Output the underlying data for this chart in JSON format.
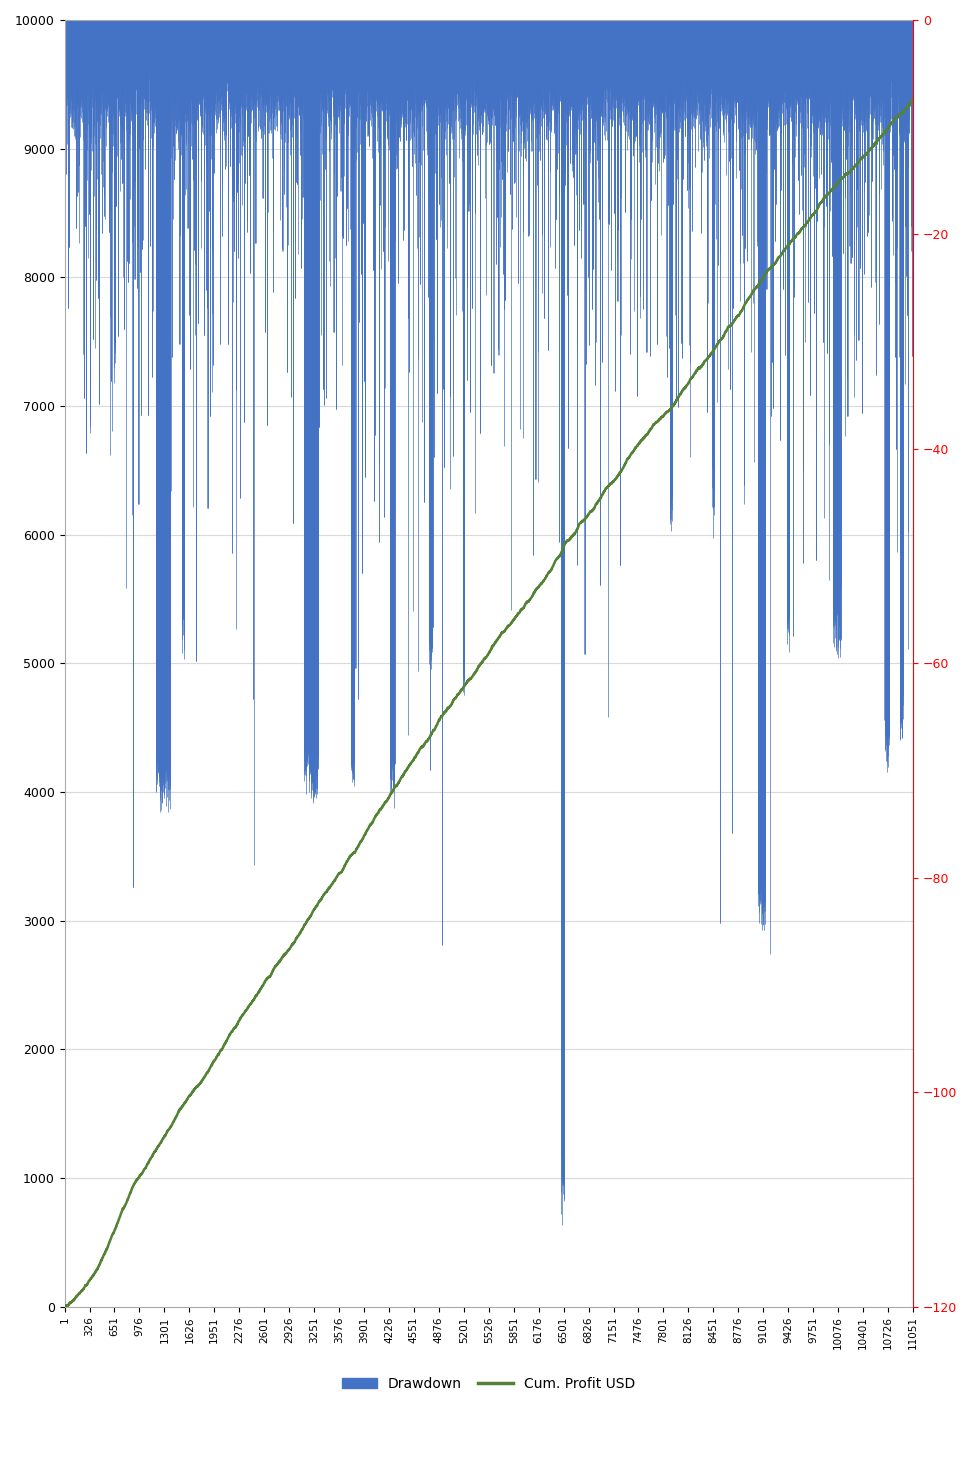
{
  "title": "",
  "left_ylim": [
    0,
    10000
  ],
  "right_ylim": [
    -120,
    0
  ],
  "left_yticks": [
    0,
    1000,
    2000,
    3000,
    4000,
    5000,
    6000,
    7000,
    8000,
    9000,
    10000
  ],
  "right_yticks": [
    0,
    -20,
    -40,
    -60,
    -80,
    -100,
    -120
  ],
  "xtick_positions": [
    1,
    326,
    651,
    976,
    1301,
    1626,
    1951,
    2276,
    2601,
    2926,
    3251,
    3576,
    3901,
    4226,
    4551,
    4876,
    5201,
    5526,
    5851,
    6176,
    6501,
    6826,
    7151,
    7476,
    7801,
    8126,
    8451,
    8776,
    9101,
    9426,
    9751,
    10076,
    10401,
    10726,
    11051
  ],
  "n_trades": 11051,
  "drawdown_color": "#4472C4",
  "profit_color": "#548235",
  "background_color": "#FFFFFF",
  "grid_color": "#D9D9D9",
  "legend_labels": [
    "Drawdown",
    "Cum. Profit USD"
  ],
  "figsize": [
    9.72,
    14.57
  ],
  "dpi": 100
}
